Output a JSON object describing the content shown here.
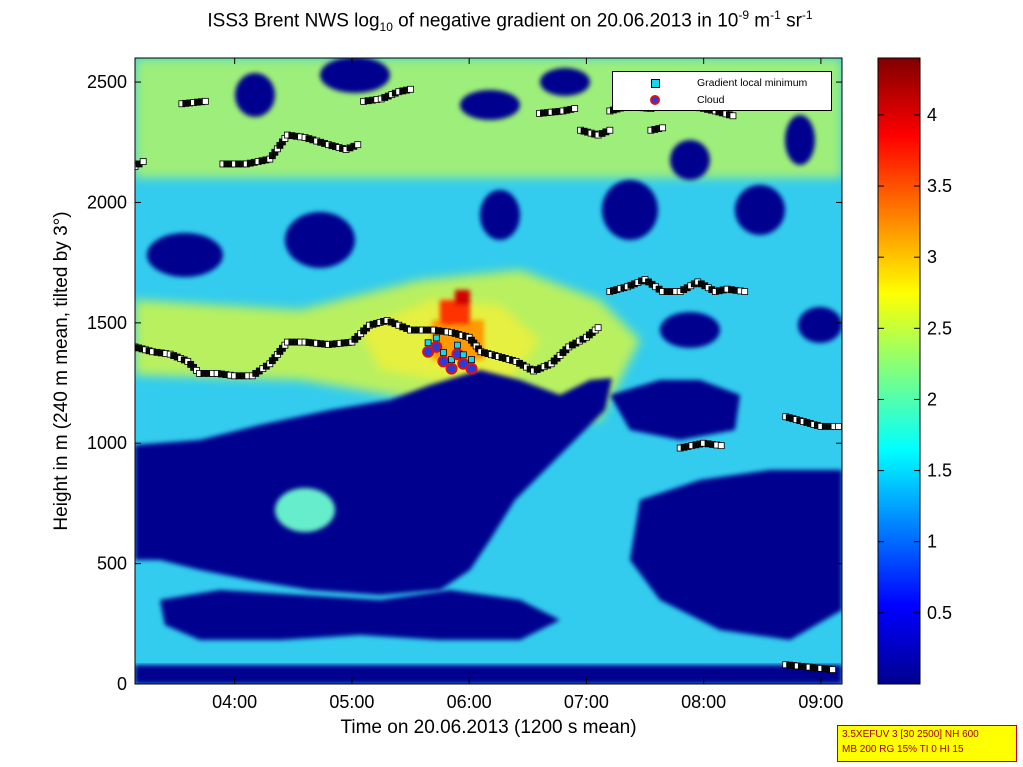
{
  "title": {
    "prefix": "ISS3 Brent NWS log",
    "sub": "10",
    "middle": " of negative gradient on 20.06.2013 in 10",
    "sup1": "-9",
    "unit1": " m",
    "sup2": "-1",
    "unit2": " sr",
    "sup3": "-1"
  },
  "legend": {
    "gradient_label": "Gradient local minimum",
    "cloud_label": "Cloud"
  },
  "info": {
    "line1": "3.5XEFUV 3 [30 2500] NH 600",
    "line2": "MB 200 RG 15% TI 0 HI 15"
  },
  "chart_data": {
    "type": "heatmap",
    "xlabel": "Time on 20.06.2013 (1200 s mean)",
    "ylabel": "Height in m (240 m mean, tilted by 3°)",
    "xlim_hours": [
      3.15,
      9.18
    ],
    "ylim": [
      0,
      2600
    ],
    "x_ticks": [
      {
        "h": 4,
        "label": "04:00"
      },
      {
        "h": 5,
        "label": "05:00"
      },
      {
        "h": 6,
        "label": "06:00"
      },
      {
        "h": 7,
        "label": "07:00"
      },
      {
        "h": 8,
        "label": "08:00"
      },
      {
        "h": 9,
        "label": "09:00"
      }
    ],
    "y_ticks": [
      0,
      500,
      1000,
      1500,
      2000,
      2500
    ],
    "colorbar": {
      "range": [
        0,
        4.4
      ],
      "ticks": [
        {
          "v": 0.5,
          "label": "0.5"
        },
        {
          "v": 1,
          "label": "1"
        },
        {
          "v": 1.5,
          "label": "1.5"
        },
        {
          "v": 2,
          "label": "2"
        },
        {
          "v": 2.5,
          "label": "2.5"
        },
        {
          "v": 3,
          "label": "3"
        },
        {
          "v": 3.5,
          "label": "3.5"
        },
        {
          "v": 4,
          "label": "4"
        }
      ]
    },
    "series": [
      {
        "name": "Gradient local minimum",
        "segments": [
          {
            "x": [
              3.15,
              3.3,
              3.45,
              3.6,
              3.7,
              3.85,
              4.0,
              4.15,
              4.3,
              4.45,
              4.6,
              4.8,
              5.0,
              5.15,
              5.3,
              5.5,
              5.7,
              5.85,
              6.0,
              6.1,
              6.25,
              6.4,
              6.55,
              6.7,
              6.85,
              7.0,
              7.1
            ],
            "y": [
              1400,
              1380,
              1370,
              1340,
              1290,
              1290,
              1280,
              1280,
              1330,
              1420,
              1420,
              1410,
              1420,
              1490,
              1510,
              1470,
              1470,
              1460,
              1440,
              1380,
              1360,
              1340,
              1300,
              1330,
              1400,
              1440,
              1480
            ]
          },
          {
            "x": [
              3.15,
              3.22
            ],
            "y": [
              2150,
              2170
            ]
          },
          {
            "x": [
              3.55,
              3.75
            ],
            "y": [
              2410,
              2420
            ]
          },
          {
            "x": [
              3.9,
              4.1,
              4.3,
              4.45,
              4.6,
              4.8,
              4.95,
              5.05
            ],
            "y": [
              2160,
              2160,
              2180,
              2280,
              2270,
              2240,
              2220,
              2240
            ]
          },
          {
            "x": [
              5.1,
              5.25,
              5.4,
              5.5
            ],
            "y": [
              2420,
              2430,
              2460,
              2470
            ]
          },
          {
            "x": [
              6.6,
              6.8,
              6.9
            ],
            "y": [
              2370,
              2380,
              2390
            ]
          },
          {
            "x": [
              6.95,
              7.1,
              7.2
            ],
            "y": [
              2300,
              2280,
              2300
            ]
          },
          {
            "x": [
              7.2,
              7.35,
              7.55
            ],
            "y": [
              2380,
              2400,
              2390
            ]
          },
          {
            "x": [
              7.55,
              7.65
            ],
            "y": [
              2300,
              2310
            ]
          },
          {
            "x": [
              7.9,
              8.1,
              8.25
            ],
            "y": [
              2400,
              2380,
              2360
            ]
          },
          {
            "x": [
              7.2,
              7.35,
              7.5,
              7.65,
              7.8,
              7.95,
              8.1,
              8.2,
              8.35
            ],
            "y": [
              1630,
              1650,
              1680,
              1630,
              1630,
              1670,
              1630,
              1640,
              1630
            ]
          },
          {
            "x": [
              7.8,
              8.0,
              8.15
            ],
            "y": [
              980,
              1000,
              990
            ]
          },
          {
            "x": [
              8.7,
              8.85,
              9.0,
              9.15
            ],
            "y": [
              1110,
              1090,
              1070,
              1070
            ]
          },
          {
            "x": [
              8.7,
              8.9,
              9.1
            ],
            "y": [
              80,
              70,
              60
            ]
          }
        ]
      },
      {
        "name": "Cloud",
        "x": [
          5.65,
          5.72,
          5.78,
          5.85,
          5.9,
          5.95,
          6.02
        ],
        "y": [
          1380,
          1400,
          1340,
          1310,
          1370,
          1330,
          1310
        ]
      }
    ]
  }
}
